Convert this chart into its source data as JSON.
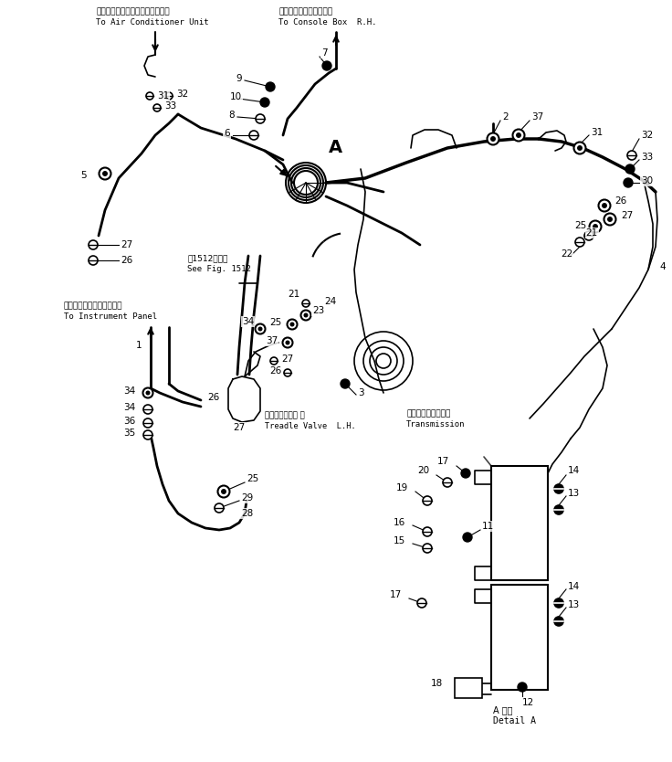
{
  "bg_color": "#ffffff",
  "fig_width": 7.36,
  "fig_height": 8.34,
  "dpi": 100,
  "labels": {
    "top_left_jp": "エアーコンディショナユニットへ",
    "top_left_en": "To Air Conditioner Unit",
    "top_mid_jp": "コンソールボックス右へ",
    "top_mid_en": "To Console Box  R.H.",
    "see_fig_jp": "第1512図参照",
    "see_fig_en": "See Fig. 1512",
    "inst_panel_jp": "インスツルメントパネルへ",
    "inst_panel_en": "To Instrument Panel",
    "treadle_jp": "トレドルバルブ 左",
    "treadle_en": "Treadle Valve  L.H.",
    "transmission_jp": "トランスミッション",
    "transmission_en": "Transmission",
    "detail_a_jp": "A 詳細",
    "detail_a_en": "Detail A",
    "point_a": "A"
  }
}
